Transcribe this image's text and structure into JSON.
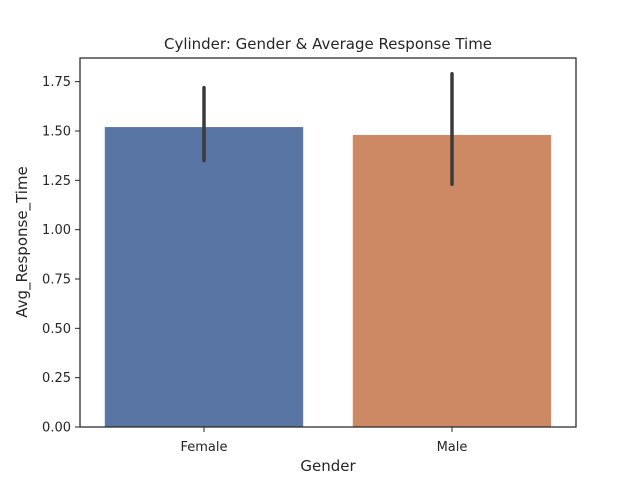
{
  "chart_data": {
    "type": "bar",
    "title": "Cylinder: Gender & Average Response Time",
    "xlabel": "Gender",
    "ylabel": "Avg_Response_Time",
    "categories": [
      "Female",
      "Male"
    ],
    "values": [
      1.52,
      1.48
    ],
    "error_low": [
      1.35,
      1.23
    ],
    "error_high": [
      1.72,
      1.79
    ],
    "colors": [
      "#5975a4",
      "#cc8963"
    ],
    "ylim": [
      0,
      1.87
    ],
    "yticks": [
      0,
      0.25,
      0.5,
      0.75,
      1.0,
      1.25,
      1.5,
      1.75
    ],
    "ytick_labels": [
      "0.00",
      "0.25",
      "0.50",
      "0.75",
      "1.00",
      "1.25",
      "1.50",
      "1.75"
    ],
    "grid": false,
    "legend": "none"
  }
}
